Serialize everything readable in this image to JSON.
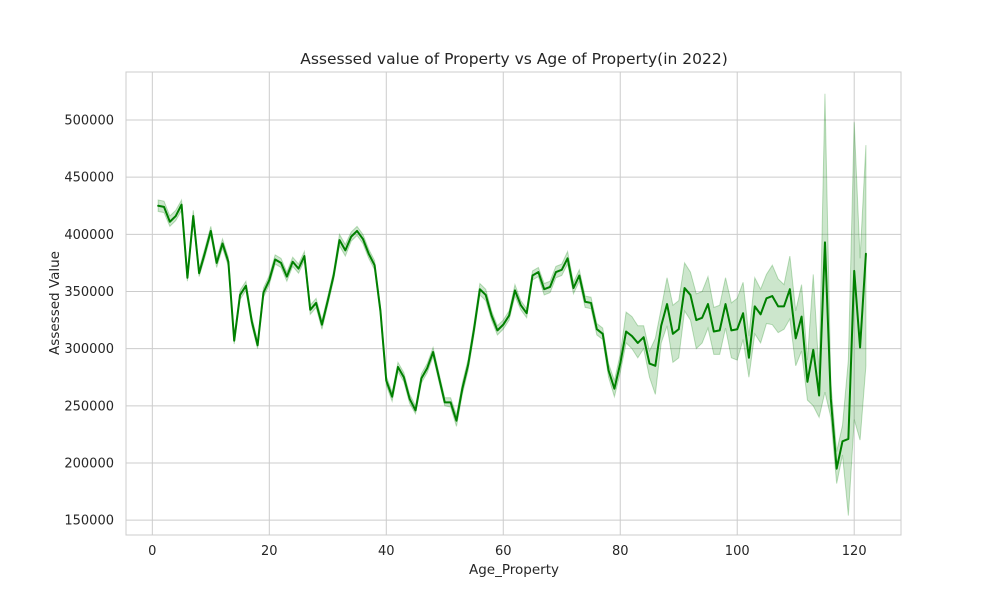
{
  "chart_data": {
    "type": "line",
    "title": "Assessed value of Property vs Age of Property(in 2022)",
    "xlabel": "Age_Property",
    "ylabel": "Assessed Value",
    "xlim": [
      -4.5,
      128
    ],
    "ylim": [
      137000,
      542000
    ],
    "xticks": [
      0,
      20,
      40,
      60,
      80,
      100,
      120
    ],
    "yticks": [
      150000,
      200000,
      250000,
      300000,
      350000,
      400000,
      450000,
      500000
    ],
    "xtick_labels": [
      "0",
      "20",
      "40",
      "60",
      "80",
      "100",
      "120"
    ],
    "ytick_labels": [
      "150000",
      "200000",
      "250000",
      "300000",
      "350000",
      "400000",
      "450000",
      "500000"
    ],
    "grid": true,
    "legend": "none",
    "colors": {
      "line": "#008000",
      "band": "#008000"
    },
    "series": [
      {
        "x": [
          1,
          2,
          3,
          4,
          5,
          6,
          7,
          8,
          9,
          10,
          11,
          12,
          13,
          14,
          15,
          16,
          17,
          18,
          19,
          20,
          21,
          22,
          23,
          24,
          25,
          26,
          27,
          28,
          29,
          30,
          31,
          32,
          33,
          34,
          35,
          36,
          37,
          38,
          39,
          40,
          41,
          42,
          43,
          44,
          45,
          46,
          47,
          48,
          49,
          50,
          51,
          52,
          53,
          54,
          55,
          56,
          57,
          58,
          59,
          60,
          61,
          62,
          63,
          64,
          65,
          66,
          67,
          68,
          69,
          70,
          71,
          72,
          73,
          74,
          75,
          76,
          77,
          78,
          79,
          80,
          81,
          82,
          83,
          84,
          85,
          86,
          87,
          88,
          89,
          90,
          91,
          92,
          93,
          94,
          95,
          96,
          97,
          98,
          99,
          100,
          101,
          102,
          103,
          104,
          105,
          106,
          107,
          108,
          109,
          110,
          111,
          112,
          113,
          114,
          115,
          116,
          117,
          118,
          119,
          120,
          121,
          122
        ],
        "y": [
          425000,
          424000,
          411000,
          416000,
          426000,
          362000,
          416000,
          366000,
          384000,
          403000,
          375000,
          392000,
          376000,
          307000,
          347000,
          355000,
          324000,
          303000,
          349000,
          360000,
          378000,
          375000,
          363000,
          376000,
          370000,
          381000,
          334000,
          340000,
          321000,
          342000,
          364000,
          395000,
          386000,
          398000,
          403000,
          396000,
          383000,
          373000,
          333000,
          272000,
          258000,
          284000,
          275000,
          256000,
          246000,
          274000,
          283000,
          297000,
          275000,
          253000,
          253000,
          237000,
          265000,
          286000,
          317000,
          352000,
          347000,
          329000,
          316000,
          321000,
          329000,
          351000,
          338000,
          331000,
          364000,
          367000,
          352000,
          354000,
          367000,
          369000,
          379000,
          353000,
          364000,
          341000,
          340000,
          317000,
          313000,
          281000,
          265000,
          287000,
          315000,
          311000,
          305000,
          310000,
          287000,
          285000,
          320000,
          339000,
          313000,
          317000,
          353000,
          347000,
          325000,
          327000,
          339000,
          315000,
          316000,
          339000,
          316000,
          317000,
          331000,
          292000,
          337000,
          330000,
          344000,
          346000,
          337000,
          337000,
          352000,
          309000,
          328000,
          271000,
          299000,
          259000,
          393000,
          256000,
          195000,
          219000,
          221000,
          368000,
          301000,
          383000
        ],
        "lower": [
          420000,
          419000,
          407000,
          412000,
          421000,
          359000,
          412000,
          363000,
          380000,
          399000,
          371000,
          388000,
          372000,
          304000,
          343000,
          351000,
          320000,
          300000,
          345000,
          356000,
          374000,
          371000,
          359000,
          372000,
          366000,
          377000,
          330000,
          336000,
          317000,
          338000,
          360000,
          390000,
          381000,
          394000,
          399000,
          392000,
          379000,
          369000,
          329000,
          268000,
          254000,
          280000,
          271000,
          252000,
          243000,
          270000,
          279000,
          293000,
          271000,
          250000,
          249000,
          232000,
          260000,
          281000,
          312000,
          347000,
          342000,
          325000,
          312000,
          317000,
          325000,
          346000,
          334000,
          327000,
          360000,
          363000,
          347000,
          349000,
          362000,
          364000,
          374000,
          348000,
          359000,
          336000,
          335000,
          312000,
          308000,
          275000,
          258000,
          279000,
          305000,
          300000,
          292000,
          300000,
          275000,
          260000,
          305000,
          320000,
          288000,
          292000,
          333000,
          325000,
          300000,
          305000,
          318000,
          295000,
          295000,
          318000,
          292000,
          290000,
          308000,
          275000,
          313000,
          305000,
          322000,
          321000,
          314000,
          317000,
          326000,
          285000,
          298000,
          255000,
          250000,
          240000,
          262000,
          240000,
          182000,
          207000,
          154000,
          238000,
          220000,
          285000
        ],
        "upper": [
          430000,
          429000,
          416000,
          421000,
          430000,
          366000,
          421000,
          370000,
          388000,
          407000,
          379000,
          396000,
          380000,
          311000,
          351000,
          359000,
          328000,
          307000,
          353000,
          364000,
          382000,
          379000,
          367000,
          380000,
          374000,
          385000,
          338000,
          344000,
          325000,
          346000,
          368000,
          400000,
          391000,
          402000,
          407000,
          400000,
          387000,
          377000,
          337000,
          276000,
          262000,
          288000,
          279000,
          260000,
          250000,
          278000,
          287000,
          301000,
          279000,
          257000,
          257000,
          242000,
          270000,
          291000,
          322000,
          357000,
          352000,
          333000,
          320000,
          325000,
          333000,
          356000,
          342000,
          335000,
          368000,
          371000,
          357000,
          359000,
          372000,
          374000,
          385000,
          358000,
          369000,
          346000,
          345000,
          322000,
          318000,
          287000,
          272000,
          295000,
          332000,
          328000,
          320000,
          320000,
          298000,
          309000,
          335000,
          362000,
          338000,
          342000,
          375000,
          367000,
          348000,
          350000,
          363000,
          336000,
          338000,
          362000,
          340000,
          344000,
          358000,
          311000,
          362000,
          352000,
          365000,
          373000,
          361000,
          356000,
          381000,
          333000,
          356000,
          290000,
          365000,
          278000,
          523000,
          270000,
          210000,
          233000,
          290000,
          498000,
          379000,
          478000
        ]
      }
    ]
  }
}
